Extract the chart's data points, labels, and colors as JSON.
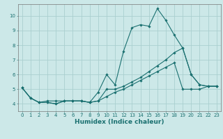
{
  "xlabel": "Humidex (Indice chaleur)",
  "xlim": [
    -0.5,
    23.5
  ],
  "ylim": [
    3.5,
    10.8
  ],
  "bg_color": "#cce8e8",
  "grid_color": "#aacfcf",
  "line_color": "#1a7070",
  "series": [
    {
      "x": [
        0,
        1,
        2,
        3,
        4,
        5,
        6,
        7,
        8,
        9,
        10,
        11,
        12,
        13,
        14,
        15,
        16,
        17,
        18,
        19,
        20,
        21,
        22,
        23
      ],
      "y": [
        5.1,
        4.4,
        4.1,
        4.1,
        4.0,
        4.2,
        4.2,
        4.2,
        4.1,
        4.8,
        6.0,
        5.3,
        7.6,
        9.2,
        9.4,
        9.3,
        10.5,
        9.7,
        8.7,
        7.8,
        6.0,
        5.3,
        5.2,
        5.2
      ]
    },
    {
      "x": [
        0,
        1,
        2,
        3,
        4,
        5,
        6,
        7,
        8,
        9,
        10,
        11,
        12,
        13,
        14,
        15,
        16,
        17,
        18,
        19,
        20,
        21,
        22,
        23
      ],
      "y": [
        5.1,
        4.4,
        4.1,
        4.1,
        4.0,
        4.2,
        4.2,
        4.2,
        4.1,
        4.2,
        5.0,
        5.0,
        5.2,
        5.5,
        5.8,
        6.2,
        6.6,
        7.0,
        7.5,
        7.8,
        6.0,
        5.3,
        5.2,
        5.2
      ]
    },
    {
      "x": [
        0,
        1,
        2,
        3,
        4,
        5,
        6,
        7,
        8,
        9,
        10,
        11,
        12,
        13,
        14,
        15,
        16,
        17,
        18,
        19,
        20,
        21,
        22,
        23
      ],
      "y": [
        5.1,
        4.4,
        4.1,
        4.2,
        4.2,
        4.2,
        4.2,
        4.2,
        4.1,
        4.2,
        4.5,
        4.8,
        5.0,
        5.3,
        5.6,
        5.9,
        6.2,
        6.5,
        6.8,
        5.0,
        5.0,
        5.0,
        5.2,
        5.2
      ]
    }
  ],
  "xticks": [
    0,
    1,
    2,
    3,
    4,
    5,
    6,
    7,
    8,
    9,
    10,
    11,
    12,
    13,
    14,
    15,
    16,
    17,
    18,
    19,
    20,
    21,
    22,
    23
  ],
  "yticks": [
    4,
    5,
    6,
    7,
    8,
    9,
    10
  ],
  "marker": "D",
  "markersize": 1.8,
  "linewidth": 0.8,
  "tick_fontsize": 5.0,
  "xlabel_fontsize": 6.5
}
